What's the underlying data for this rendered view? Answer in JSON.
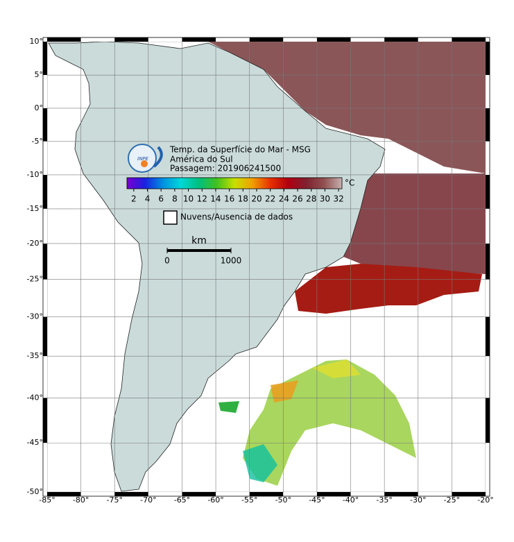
{
  "map": {
    "title": "Temp. da Superfície do Mar - MSG",
    "subtitle": "América do Sul",
    "pass": "Passagem: 201906241500",
    "logo": "INPE",
    "lonlim": [
      -85,
      -20
    ],
    "latlim": [
      -50,
      10
    ],
    "lon_ticks": [
      {
        "value": -85,
        "label": "-85°"
      },
      {
        "value": -80,
        "label": "-80°"
      },
      {
        "value": -75,
        "label": "-75°"
      },
      {
        "value": -70,
        "label": "-70°"
      },
      {
        "value": -65,
        "label": "-65°"
      },
      {
        "value": -60,
        "label": "-60°"
      },
      {
        "value": -55,
        "label": "-55°"
      },
      {
        "value": -50,
        "label": "-50°"
      },
      {
        "value": -45,
        "label": "-45°"
      },
      {
        "value": -40,
        "label": "-40°"
      },
      {
        "value": -35,
        "label": "-35°"
      },
      {
        "value": -30,
        "label": "-30°"
      },
      {
        "value": -25,
        "label": "-25°"
      },
      {
        "value": -20,
        "label": "-20°"
      }
    ],
    "lat_ticks": [
      {
        "value": 10,
        "label": "10°"
      },
      {
        "value": 5,
        "label": "5°"
      },
      {
        "value": 0,
        "label": "0°"
      },
      {
        "value": -5,
        "label": "-5°"
      },
      {
        "value": -10,
        "label": "-10°"
      },
      {
        "value": -15,
        "label": "-15°"
      },
      {
        "value": -20,
        "label": "-20°"
      },
      {
        "value": -25,
        "label": "-25°"
      },
      {
        "value": -30,
        "label": "-30°"
      },
      {
        "value": -35,
        "label": "-35°"
      },
      {
        "value": -40,
        "label": "-40°"
      },
      {
        "value": -45,
        "label": "-45°"
      },
      {
        "value": -50,
        "label": "-50°"
      }
    ],
    "grid": true,
    "colorbar": {
      "lim": [
        1,
        32.5
      ],
      "ticks": [
        2,
        4,
        6,
        8,
        10,
        12,
        14,
        16,
        18,
        20,
        22,
        24,
        26,
        28,
        30,
        32
      ],
      "unit": "°C",
      "colors": [
        "#7a00d0",
        "#1a20e0",
        "#0090e0",
        "#00d8d8",
        "#00c080",
        "#40c020",
        "#c8e000",
        "#f0a000",
        "#e83000",
        "#b00010",
        "#802030",
        "#905050",
        "#c8b0b0"
      ]
    },
    "legend": {
      "label": "Nuvens/Ausencia de dados"
    },
    "scale_bar": {
      "unit": "km",
      "ticks": [
        0,
        1000
      ]
    }
  }
}
